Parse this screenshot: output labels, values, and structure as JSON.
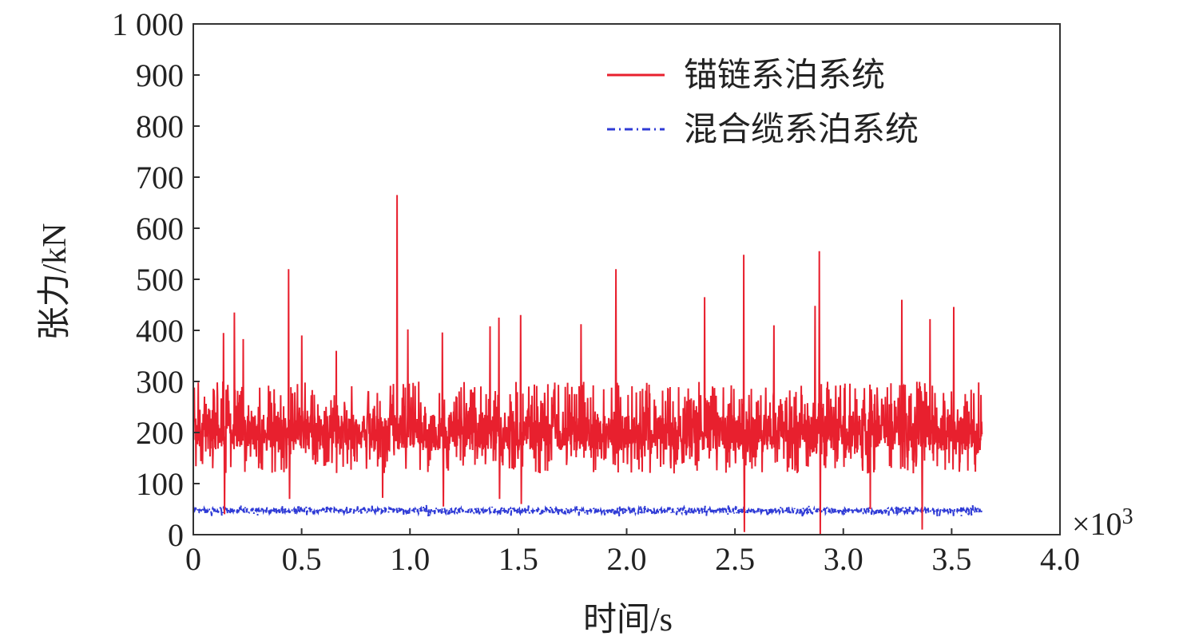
{
  "chart_data": {
    "type": "line",
    "xlabel": "时间/s",
    "ylabel": "张力/kN",
    "x_multiplier_label": "×10",
    "x_multiplier_exp": "3",
    "xlim": [
      0,
      4.0
    ],
    "ylim": [
      0,
      1000
    ],
    "x_ticks": [
      0,
      0.5,
      1.0,
      1.5,
      2.0,
      2.5,
      3.0,
      3.5,
      4.0
    ],
    "x_tick_labels": [
      "0",
      "0.5",
      "1.0",
      "1.5",
      "2.0",
      "2.5",
      "3.0",
      "3.5",
      "4.0"
    ],
    "y_ticks": [
      0,
      100,
      200,
      300,
      400,
      500,
      600,
      700,
      800,
      900,
      1000
    ],
    "y_tick_labels": [
      "0",
      "100",
      "200",
      "300",
      "400",
      "500",
      "600",
      "700",
      "800",
      "900",
      "1 000"
    ],
    "grid": false,
    "legend_position": "top-right",
    "series": [
      {
        "name": "锚链系泊系统",
        "color": "#e8202e",
        "style": "solid",
        "x_range": [
          0,
          3.64
        ],
        "baseline": 200,
        "typical_range": [
          120,
          300
        ],
        "peaks": [
          {
            "x": 0.14,
            "y": 395
          },
          {
            "x": 0.19,
            "y": 435
          },
          {
            "x": 0.23,
            "y": 383
          },
          {
            "x": 0.44,
            "y": 520
          },
          {
            "x": 0.5,
            "y": 390
          },
          {
            "x": 0.66,
            "y": 360
          },
          {
            "x": 0.94,
            "y": 665
          },
          {
            "x": 0.99,
            "y": 402
          },
          {
            "x": 1.15,
            "y": 396
          },
          {
            "x": 1.37,
            "y": 408
          },
          {
            "x": 1.41,
            "y": 425
          },
          {
            "x": 1.51,
            "y": 430
          },
          {
            "x": 1.79,
            "y": 412
          },
          {
            "x": 1.95,
            "y": 520
          },
          {
            "x": 2.36,
            "y": 465
          },
          {
            "x": 2.54,
            "y": 548
          },
          {
            "x": 2.68,
            "y": 410
          },
          {
            "x": 2.87,
            "y": 448
          },
          {
            "x": 2.89,
            "y": 555
          },
          {
            "x": 3.27,
            "y": 460
          },
          {
            "x": 3.4,
            "y": 422
          },
          {
            "x": 3.51,
            "y": 446
          }
        ],
        "troughs": [
          {
            "x": 0.14,
            "y": 40
          },
          {
            "x": 0.44,
            "y": 70
          },
          {
            "x": 0.87,
            "y": 72
          },
          {
            "x": 1.15,
            "y": 55
          },
          {
            "x": 1.41,
            "y": 70
          },
          {
            "x": 1.51,
            "y": 60
          },
          {
            "x": 2.54,
            "y": 5
          },
          {
            "x": 2.89,
            "y": 0
          },
          {
            "x": 3.12,
            "y": 50
          },
          {
            "x": 3.36,
            "y": 10
          }
        ]
      },
      {
        "name": "混合缆系泊系统",
        "color": "#2f3bd6",
        "style": "dash-dot",
        "x_range": [
          0,
          3.64
        ],
        "baseline": 47,
        "typical_range": [
          35,
          60
        ]
      }
    ]
  }
}
